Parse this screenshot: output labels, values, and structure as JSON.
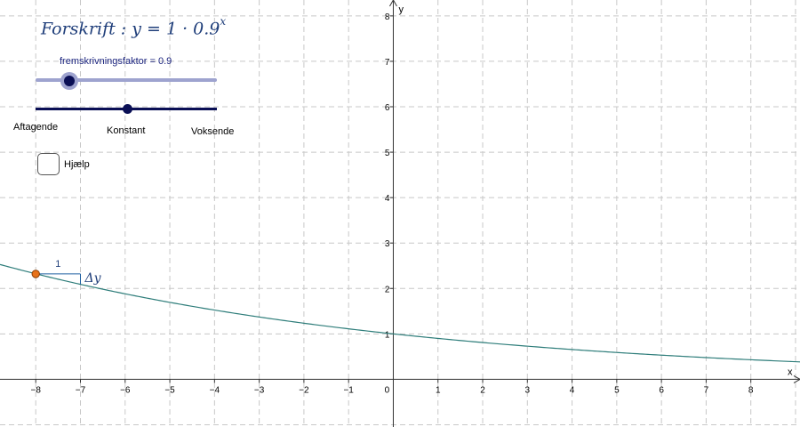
{
  "formula": {
    "prefix": "Forskrift : y = 1 · 0.9",
    "exponent": "x"
  },
  "slider": {
    "label": "fremskrivningsfaktor = 0.9",
    "value": 0.9
  },
  "type_slider": {
    "labels": [
      "Aftagende",
      "Konstant",
      "Voksende"
    ],
    "selected": "Konstant"
  },
  "checkbox": {
    "label": "Hjælp",
    "checked": false
  },
  "axes": {
    "x_name": "x",
    "y_name": "y",
    "x_ticks": [
      "−8",
      "−7",
      "−6",
      "−5",
      "−4",
      "−3",
      "−2",
      "−1",
      "0",
      "1",
      "2",
      "3",
      "4",
      "5",
      "6",
      "7",
      "8"
    ],
    "y_ticks": [
      "1",
      "2",
      "3",
      "4",
      "5",
      "6",
      "7",
      "8"
    ]
  },
  "annotations": {
    "step_label": "1",
    "delta_label": "Δy"
  },
  "colors": {
    "curve": "#2e7d7a",
    "point": "#e8731a",
    "grid": "#c8c8c8",
    "slider_dark": "#0a0f55",
    "slider_light": "#9ea3cf",
    "formula": "#1f3e7a"
  },
  "chart_data": {
    "type": "line",
    "function": "y = 1 · 0.9^x",
    "base": 0.9,
    "initial": 1,
    "xlim": [
      -8.8,
      9.1
    ],
    "ylim": [
      -1.05,
      8.35
    ],
    "grid": true,
    "point": {
      "x": -8,
      "y": 2.32
    },
    "x": [
      -8.8,
      -8,
      -7,
      -6,
      -5,
      -4,
      -3,
      -2,
      -1,
      0,
      1,
      2,
      3,
      4,
      5,
      6,
      7,
      8,
      9
    ],
    "y": [
      2.53,
      2.32,
      2.09,
      1.88,
      1.69,
      1.52,
      1.37,
      1.23,
      1.11,
      1.0,
      0.9,
      0.81,
      0.73,
      0.66,
      0.59,
      0.53,
      0.48,
      0.43,
      0.39
    ]
  }
}
